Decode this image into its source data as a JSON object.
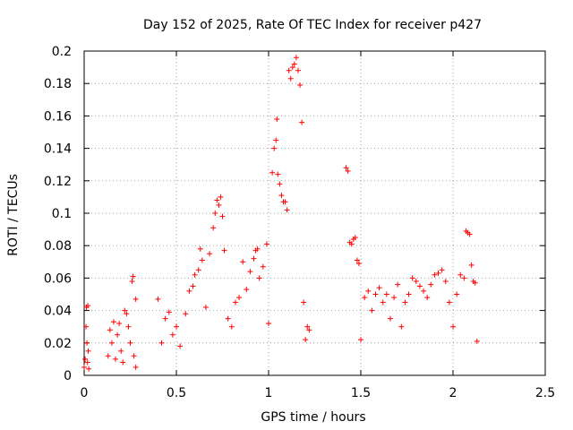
{
  "chart_data": {
    "type": "scatter",
    "title": "Day 152 of 2025, Rate Of TEC Index for receiver p427",
    "xlabel": "GPS time / hours",
    "ylabel": "ROTI / TECUs",
    "xlim": [
      0,
      2.5
    ],
    "ylim": [
      0,
      0.2
    ],
    "x_ticks": [
      {
        "value": 0,
        "label": "0"
      },
      {
        "value": 0.5,
        "label": "0.5"
      },
      {
        "value": 1,
        "label": "1"
      },
      {
        "value": 1.5,
        "label": "1.5"
      },
      {
        "value": 2,
        "label": "2"
      },
      {
        "value": 2.5,
        "label": "2.5"
      }
    ],
    "y_ticks": [
      {
        "value": 0,
        "label": "0"
      },
      {
        "value": 0.02,
        "label": "0.02"
      },
      {
        "value": 0.04,
        "label": "0.04"
      },
      {
        "value": 0.06,
        "label": "0.06"
      },
      {
        "value": 0.08,
        "label": "0.08"
      },
      {
        "value": 0.1,
        "label": "0.1"
      },
      {
        "value": 0.12,
        "label": "0.12"
      },
      {
        "value": 0.14,
        "label": "0.14"
      },
      {
        "value": 0.16,
        "label": "0.16"
      },
      {
        "value": 0.18,
        "label": "0.18"
      },
      {
        "value": 0.2,
        "label": "0.2"
      }
    ],
    "grid": true,
    "marker": "+",
    "marker_color": "#ff0000",
    "series": [
      {
        "name": "ROTI",
        "points": [
          [
            0.0,
            0.005
          ],
          [
            0.005,
            0.01
          ],
          [
            0.01,
            0.03
          ],
          [
            0.012,
            0.042
          ],
          [
            0.015,
            0.02
          ],
          [
            0.018,
            0.008
          ],
          [
            0.02,
            0.043
          ],
          [
            0.022,
            0.015
          ],
          [
            0.025,
            0.004
          ],
          [
            0.13,
            0.012
          ],
          [
            0.14,
            0.028
          ],
          [
            0.15,
            0.02
          ],
          [
            0.16,
            0.033
          ],
          [
            0.17,
            0.01
          ],
          [
            0.18,
            0.025
          ],
          [
            0.19,
            0.032
          ],
          [
            0.2,
            0.015
          ],
          [
            0.21,
            0.008
          ],
          [
            0.22,
            0.04
          ],
          [
            0.23,
            0.038
          ],
          [
            0.24,
            0.03
          ],
          [
            0.25,
            0.02
          ],
          [
            0.26,
            0.058
          ],
          [
            0.265,
            0.061
          ],
          [
            0.27,
            0.012
          ],
          [
            0.28,
            0.047
          ],
          [
            0.28,
            0.005
          ],
          [
            0.4,
            0.047
          ],
          [
            0.42,
            0.02
          ],
          [
            0.44,
            0.035
          ],
          [
            0.46,
            0.039
          ],
          [
            0.48,
            0.025
          ],
          [
            0.5,
            0.03
          ],
          [
            0.52,
            0.018
          ],
          [
            0.55,
            0.038
          ],
          [
            0.57,
            0.052
          ],
          [
            0.59,
            0.055
          ],
          [
            0.6,
            0.062
          ],
          [
            0.62,
            0.065
          ],
          [
            0.63,
            0.078
          ],
          [
            0.64,
            0.071
          ],
          [
            0.66,
            0.042
          ],
          [
            0.68,
            0.075
          ],
          [
            0.7,
            0.091
          ],
          [
            0.71,
            0.1
          ],
          [
            0.72,
            0.108
          ],
          [
            0.73,
            0.105
          ],
          [
            0.74,
            0.11
          ],
          [
            0.75,
            0.098
          ],
          [
            0.76,
            0.077
          ],
          [
            0.78,
            0.035
          ],
          [
            0.8,
            0.03
          ],
          [
            0.82,
            0.045
          ],
          [
            0.84,
            0.048
          ],
          [
            0.86,
            0.07
          ],
          [
            0.88,
            0.053
          ],
          [
            0.9,
            0.064
          ],
          [
            0.92,
            0.072
          ],
          [
            0.93,
            0.077
          ],
          [
            0.94,
            0.078
          ],
          [
            0.95,
            0.06
          ],
          [
            0.97,
            0.067
          ],
          [
            0.99,
            0.081
          ],
          [
            1.0,
            0.032
          ],
          [
            1.02,
            0.125
          ],
          [
            1.03,
            0.14
          ],
          [
            1.04,
            0.145
          ],
          [
            1.045,
            0.158
          ],
          [
            1.05,
            0.124
          ],
          [
            1.06,
            0.118
          ],
          [
            1.07,
            0.111
          ],
          [
            1.08,
            0.107
          ],
          [
            1.09,
            0.107
          ],
          [
            1.1,
            0.102
          ],
          [
            1.11,
            0.188
          ],
          [
            1.12,
            0.183
          ],
          [
            1.13,
            0.19
          ],
          [
            1.14,
            0.192
          ],
          [
            1.15,
            0.196
          ],
          [
            1.16,
            0.188
          ],
          [
            1.17,
            0.179
          ],
          [
            1.18,
            0.156
          ],
          [
            1.19,
            0.045
          ],
          [
            1.2,
            0.022
          ],
          [
            1.21,
            0.03
          ],
          [
            1.22,
            0.028
          ],
          [
            1.42,
            0.128
          ],
          [
            1.43,
            0.126
          ],
          [
            1.44,
            0.082
          ],
          [
            1.45,
            0.081
          ],
          [
            1.46,
            0.084
          ],
          [
            1.47,
            0.085
          ],
          [
            1.48,
            0.071
          ],
          [
            1.49,
            0.069
          ],
          [
            1.5,
            0.022
          ],
          [
            1.52,
            0.048
          ],
          [
            1.54,
            0.052
          ],
          [
            1.56,
            0.04
          ],
          [
            1.58,
            0.05
          ],
          [
            1.6,
            0.054
          ],
          [
            1.62,
            0.045
          ],
          [
            1.64,
            0.05
          ],
          [
            1.66,
            0.035
          ],
          [
            1.68,
            0.048
          ],
          [
            1.7,
            0.056
          ],
          [
            1.72,
            0.03
          ],
          [
            1.74,
            0.045
          ],
          [
            1.76,
            0.05
          ],
          [
            1.78,
            0.06
          ],
          [
            1.8,
            0.058
          ],
          [
            1.82,
            0.055
          ],
          [
            1.84,
            0.052
          ],
          [
            1.86,
            0.048
          ],
          [
            1.88,
            0.056
          ],
          [
            1.9,
            0.062
          ],
          [
            1.92,
            0.063
          ],
          [
            1.94,
            0.065
          ],
          [
            1.96,
            0.058
          ],
          [
            1.98,
            0.045
          ],
          [
            2.0,
            0.03
          ],
          [
            2.02,
            0.05
          ],
          [
            2.04,
            0.062
          ],
          [
            2.06,
            0.06
          ],
          [
            2.07,
            0.089
          ],
          [
            2.08,
            0.088
          ],
          [
            2.09,
            0.087
          ],
          [
            2.1,
            0.068
          ],
          [
            2.11,
            0.058
          ],
          [
            2.12,
            0.057
          ],
          [
            2.13,
            0.021
          ]
        ]
      }
    ]
  }
}
